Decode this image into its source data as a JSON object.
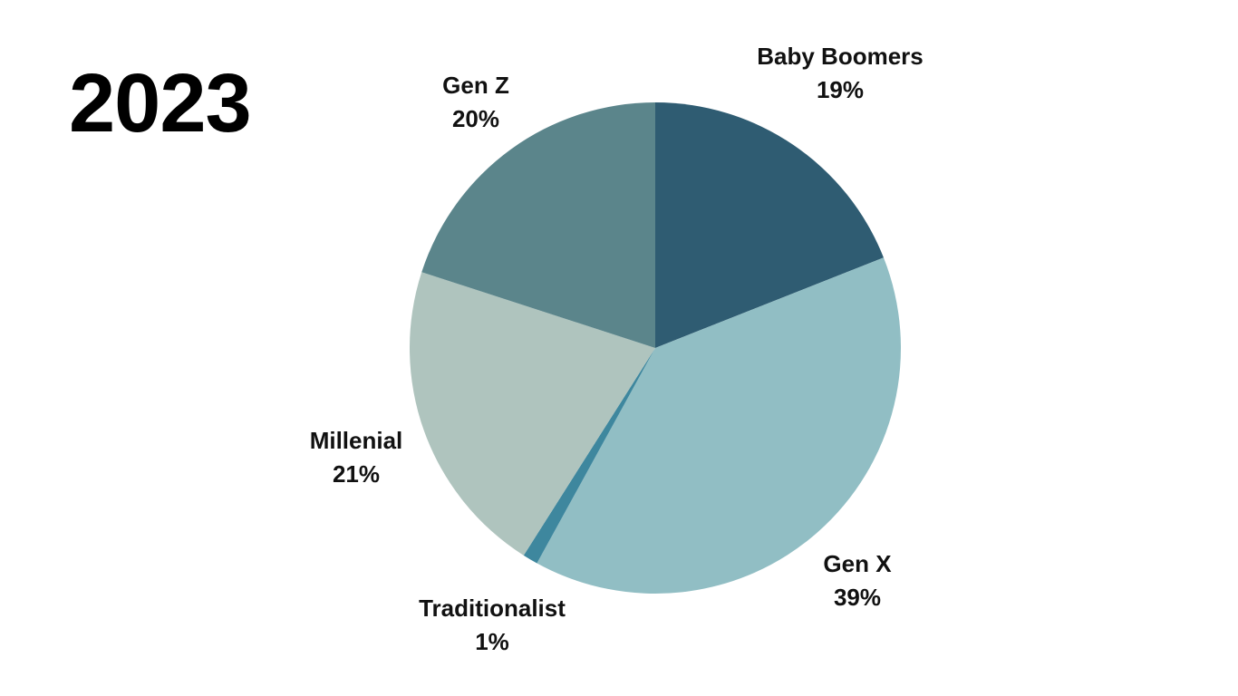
{
  "title": "2023",
  "chart_data": {
    "type": "pie",
    "title": "2023",
    "start_angle_deg": 0,
    "direction": "clockwise",
    "slices": [
      {
        "label": "Baby Boomers",
        "value": 19,
        "value_label": "19%",
        "color": "#2F5C72"
      },
      {
        "label": "Gen X",
        "value": 39,
        "value_label": "39%",
        "color": "#91BEC4"
      },
      {
        "label": "Traditionalist",
        "value": 1,
        "value_label": "1%",
        "color": "#3E879E"
      },
      {
        "label": "Millenial",
        "value": 21,
        "value_label": "21%",
        "color": "#AFC4BE"
      },
      {
        "label": "Gen Z",
        "value": 20,
        "value_label": "20%",
        "color": "#5B858B"
      }
    ]
  }
}
